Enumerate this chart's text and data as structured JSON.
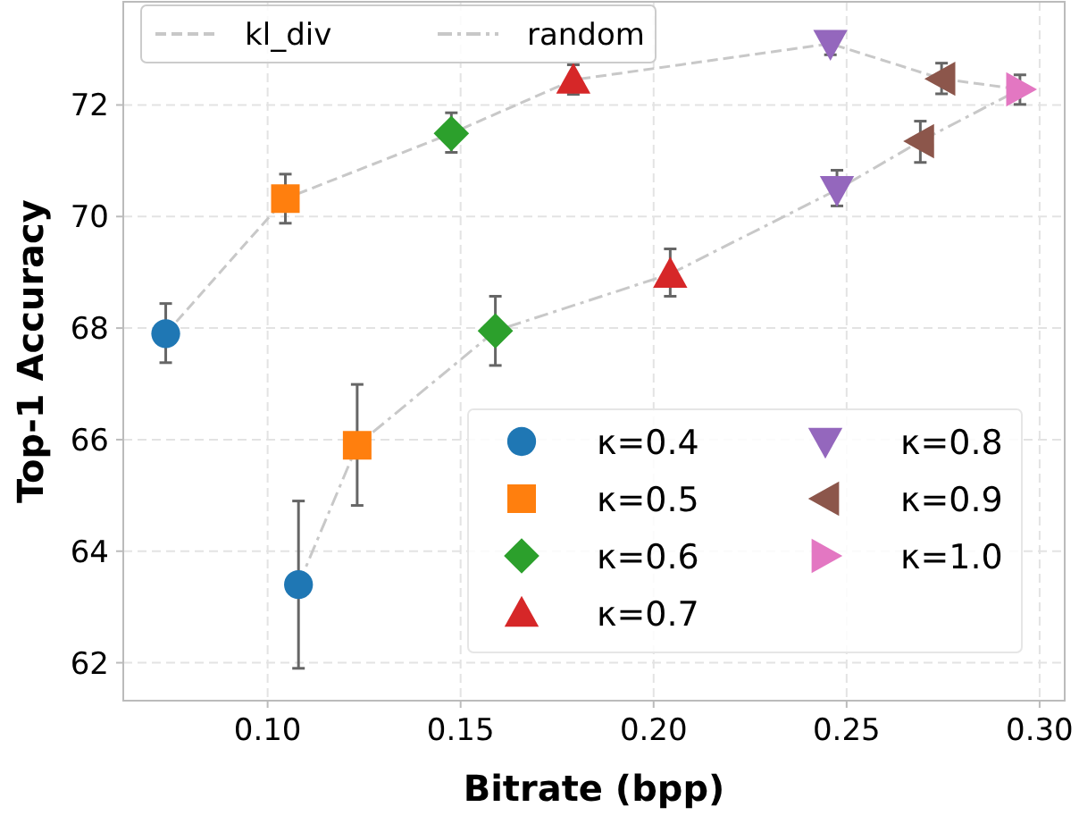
{
  "chart_data": {
    "type": "scatter",
    "xlabel": "Bitrate (bpp)",
    "ylabel": "Top-1 Accuracy",
    "xlim": [
      0.0626,
      0.3065
    ],
    "ylim": [
      61.32,
      73.85
    ],
    "xticks": [
      {
        "value": 0.1,
        "label": "0.10"
      },
      {
        "value": 0.15,
        "label": "0.15"
      },
      {
        "value": 0.2,
        "label": "0.20"
      },
      {
        "value": 0.25,
        "label": "0.25"
      },
      {
        "value": 0.3,
        "label": "0.30"
      }
    ],
    "yticks": [
      62,
      64,
      66,
      68,
      70,
      72
    ],
    "grid": true,
    "legend": "top left",
    "series": [
      {
        "name": "kl_div",
        "type": "line",
        "color": "#c8c8c8",
        "line_style": "dashed",
        "x": [
          0.0736,
          0.1046,
          0.1476,
          0.1792,
          0.2458,
          0.2746,
          0.2949
        ],
        "values": [
          67.9,
          70.32,
          71.49,
          72.45,
          73.1,
          72.47,
          72.28
        ]
      },
      {
        "name": "random",
        "type": "line",
        "color": "#c8c8c8",
        "line_style": "dashdot",
        "x": [
          0.108,
          0.1232,
          0.159,
          0.2043,
          0.2475,
          0.2691,
          0.2949
        ],
        "values": [
          63.4,
          65.9,
          67.95,
          68.97,
          70.48,
          71.35,
          72.28
        ]
      },
      {
        "name": "κ=0.4",
        "color": "#1f77b4",
        "marker": "circle",
        "x": [
          0.0736,
          0.108
        ],
        "values": [
          67.9,
          63.4
        ],
        "errors": [
          [
            67.38,
            68.44
          ],
          [
            61.9,
            64.9
          ]
        ]
      },
      {
        "name": "κ=0.5",
        "color": "#ff7f0e",
        "marker": "square",
        "x": [
          0.1046,
          0.1232
        ],
        "values": [
          70.32,
          65.9
        ],
        "errors": [
          [
            69.88,
            70.76
          ],
          [
            64.82,
            66.99
          ]
        ]
      },
      {
        "name": "κ=0.6",
        "color": "#2ca02c",
        "marker": "diamond",
        "x": [
          0.1476,
          0.159
        ],
        "values": [
          71.49,
          67.95
        ],
        "errors": [
          [
            71.15,
            71.86
          ],
          [
            67.33,
            68.57
          ]
        ]
      },
      {
        "name": "κ=0.7",
        "color": "#d62728",
        "marker": "triangle",
        "x": [
          0.1792,
          0.2043
        ],
        "values": [
          72.45,
          68.97
        ],
        "errors": [
          [
            72.19,
            72.72
          ],
          [
            68.57,
            69.42
          ]
        ]
      },
      {
        "name": "κ=0.8",
        "color": "#9467bd",
        "marker": "triangle-down",
        "x": [
          0.2458,
          0.2475
        ],
        "values": [
          73.1,
          70.48
        ],
        "errors": [
          [
            72.9,
            73.25
          ],
          [
            70.19,
            70.83
          ]
        ]
      },
      {
        "name": "κ=0.9",
        "color": "#8c564b",
        "marker": "triangle-left",
        "x": [
          0.2746,
          0.2691
        ],
        "values": [
          72.47,
          71.35
        ],
        "errors": [
          [
            72.2,
            72.75
          ],
          [
            70.97,
            71.71
          ]
        ]
      },
      {
        "name": "κ=1.0",
        "color": "#e377c2",
        "marker": "triangle-right",
        "x": [
          0.2949
        ],
        "values": [
          72.28
        ],
        "errors": [
          [
            72.01,
            72.54
          ]
        ]
      }
    ]
  }
}
